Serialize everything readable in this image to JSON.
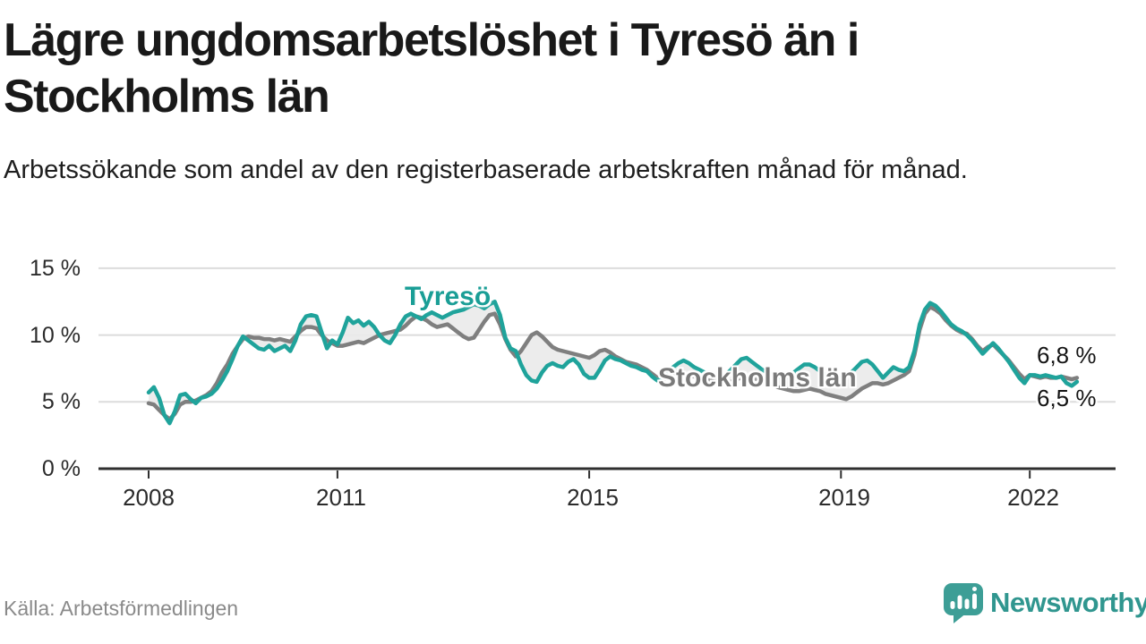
{
  "header": {
    "title": "Lägre ungdomsarbetslöshet i Tyresö än i Stockholms län",
    "subtitle": "Arbetssökande som andel av den registerbaserade arbetskraften månad för månad."
  },
  "footer": {
    "source": "Källa: Arbetsförmedlingen",
    "brand": "Newsworthy"
  },
  "colors": {
    "tyreso_line": "#1fa39b",
    "stockholm_line": "#7f7f7f",
    "area_between": "#eaeaea",
    "gridline": "#dcdcdc",
    "axis": "#2f2f2f",
    "text_dark": "#191919",
    "tick_text": "#2b2b2b",
    "source_text": "#8a8a8a",
    "logo_teal": "#3d9e96",
    "logo_text_teal": "#30968f"
  },
  "chart_data": {
    "type": "line",
    "title": "Lägre ungdomsarbetslöshet i Tyresö än i Stockholms län",
    "xlabel": "",
    "ylabel": "",
    "x_start_year": 2008,
    "x_step_months": 1,
    "x_tick_years": [
      2008,
      2011,
      2015,
      2019,
      2022
    ],
    "x_tick_labels": [
      "2008",
      "2011",
      "2015",
      "2019",
      "2022"
    ],
    "y_ticks": [
      15,
      10,
      5,
      0
    ],
    "y_tick_labels": [
      "15 %",
      "10 %",
      "5 %",
      "0 %"
    ],
    "ylim": [
      0,
      17
    ],
    "grid": true,
    "legend_position": "inline-labels",
    "series": [
      {
        "name": "Tyresö",
        "label": "Tyresö",
        "end_label": "6,5 %",
        "color": "#1fa39b",
        "values": [
          5.7,
          6.1,
          5.3,
          4.0,
          3.4,
          4.3,
          5.5,
          5.6,
          5.2,
          4.9,
          5.3,
          5.4,
          5.6,
          6.0,
          6.6,
          7.3,
          8.2,
          9.2,
          9.9,
          9.6,
          9.3,
          9.0,
          8.9,
          9.2,
          8.8,
          9.0,
          9.2,
          8.8,
          9.6,
          10.8,
          11.4,
          11.5,
          11.4,
          10.2,
          9.0,
          9.6,
          9.3,
          10.2,
          11.3,
          10.9,
          11.1,
          10.7,
          11.0,
          10.6,
          10.0,
          9.6,
          9.4,
          10.0,
          10.8,
          11.4,
          11.6,
          11.4,
          11.2,
          11.5,
          11.7,
          11.5,
          11.3,
          11.5,
          11.7,
          11.8,
          11.9,
          12.1,
          12.3,
          12.2,
          12.0,
          12.3,
          12.5,
          11.5,
          9.8,
          9.0,
          8.8,
          7.8,
          7.0,
          6.6,
          6.5,
          7.2,
          7.7,
          7.9,
          7.7,
          7.6,
          8.0,
          8.2,
          7.8,
          7.1,
          6.8,
          6.8,
          7.4,
          8.1,
          8.4,
          8.2,
          8.1,
          7.9,
          7.7,
          7.6,
          7.4,
          7.3,
          6.9,
          6.6,
          6.8,
          7.2,
          7.6,
          7.9,
          8.1,
          7.9,
          7.6,
          7.4,
          7.2,
          7.0,
          6.9,
          6.8,
          7.0,
          7.4,
          7.8,
          8.2,
          8.3,
          8.0,
          7.7,
          7.4,
          7.2,
          7.0,
          6.9,
          6.8,
          6.9,
          7.2,
          7.5,
          7.8,
          7.8,
          7.6,
          7.3,
          7.0,
          6.8,
          6.7,
          6.8,
          7.0,
          7.2,
          7.6,
          8.0,
          8.1,
          7.8,
          7.3,
          6.8,
          7.2,
          7.6,
          7.4,
          7.3,
          7.6,
          8.8,
          10.8,
          11.9,
          12.4,
          12.2,
          11.8,
          11.3,
          10.8,
          10.5,
          10.3,
          10.0,
          9.6,
          9.1,
          8.6,
          9.0,
          9.4,
          9.0,
          8.5,
          8.0,
          7.4,
          6.8,
          6.4,
          7.0,
          7.0,
          6.9,
          7.0,
          6.9,
          6.8,
          6.9,
          6.4,
          6.2,
          6.5
        ]
      },
      {
        "name": "Stockholms län",
        "label": "Stockholms län",
        "end_label": "6,8 %",
        "color": "#7f7f7f",
        "values": [
          4.9,
          4.8,
          4.4,
          4.0,
          3.7,
          4.1,
          4.8,
          5.0,
          5.0,
          5.1,
          5.3,
          5.5,
          5.8,
          6.4,
          7.2,
          7.8,
          8.6,
          9.2,
          9.7,
          9.9,
          9.8,
          9.8,
          9.7,
          9.7,
          9.6,
          9.7,
          9.6,
          9.5,
          9.9,
          10.3,
          10.6,
          10.6,
          10.5,
          10.0,
          9.6,
          9.4,
          9.2,
          9.2,
          9.3,
          9.4,
          9.5,
          9.4,
          9.6,
          9.8,
          10.0,
          10.1,
          10.2,
          10.3,
          10.4,
          10.7,
          11.1,
          11.4,
          11.3,
          11.1,
          10.8,
          10.6,
          10.7,
          10.8,
          10.5,
          10.2,
          9.9,
          9.7,
          9.8,
          10.4,
          11.0,
          11.5,
          11.6,
          10.8,
          9.7,
          8.9,
          8.4,
          8.8,
          9.4,
          10.0,
          10.2,
          9.9,
          9.5,
          9.1,
          8.9,
          8.8,
          8.7,
          8.6,
          8.5,
          8.4,
          8.3,
          8.5,
          8.8,
          8.9,
          8.7,
          8.4,
          8.2,
          8.0,
          7.9,
          7.8,
          7.6,
          7.4,
          7.1,
          6.8,
          6.7,
          6.8,
          6.9,
          7.0,
          7.1,
          7.0,
          6.9,
          6.8,
          6.7,
          6.6,
          6.5,
          6.4,
          6.4,
          6.5,
          6.7,
          6.8,
          6.9,
          6.8,
          6.7,
          6.5,
          6.4,
          6.3,
          6.1,
          6.0,
          5.9,
          5.8,
          5.8,
          5.9,
          6.0,
          5.9,
          5.8,
          5.6,
          5.5,
          5.4,
          5.3,
          5.2,
          5.4,
          5.7,
          6.0,
          6.2,
          6.4,
          6.4,
          6.3,
          6.4,
          6.6,
          6.8,
          7.0,
          7.3,
          8.5,
          10.4,
          11.6,
          12.1,
          11.9,
          11.6,
          11.1,
          10.7,
          10.4,
          10.2,
          10.1,
          9.7,
          9.2,
          8.8,
          9.1,
          9.3,
          8.9,
          8.5,
          8.1,
          7.6,
          7.1,
          6.7,
          7.0,
          6.9,
          6.8,
          6.9,
          6.8,
          6.8,
          6.9,
          6.8,
          6.7,
          6.8
        ]
      }
    ]
  }
}
